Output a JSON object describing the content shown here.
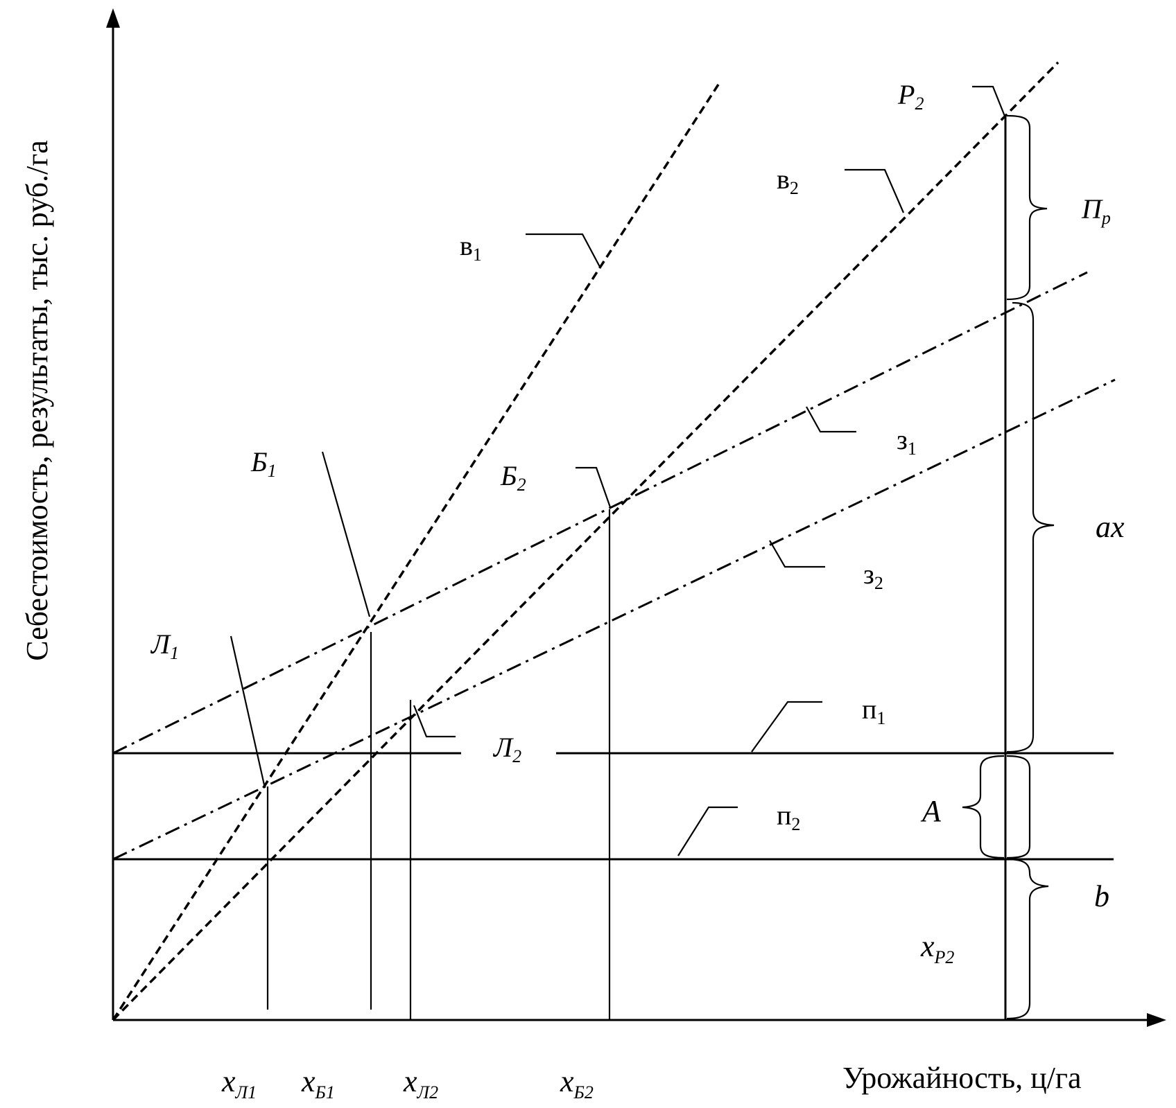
{
  "axes": {
    "y_title": "Себестоимость, результаты, тыс. руб./га",
    "x_title": "Урожайность, ц/га"
  },
  "lines": {
    "v1": {
      "base": "в",
      "sub": "1"
    },
    "v2": {
      "base": "в",
      "sub": "2"
    },
    "z1": {
      "base": "з",
      "sub": "1"
    },
    "z2": {
      "base": "з",
      "sub": "2"
    },
    "p1": {
      "base": "п",
      "sub": "1"
    },
    "p2": {
      "base": "п",
      "sub": "2"
    }
  },
  "points": {
    "B1": {
      "base": "Б",
      "sub": "1"
    },
    "B2": {
      "base": "Б",
      "sub": "2"
    },
    "L1": {
      "base": "Л",
      "sub": "1"
    },
    "L2": {
      "base": "Л",
      "sub": "2"
    },
    "P2": {
      "base": "Р",
      "sub": "2"
    }
  },
  "braces": {
    "Pr": {
      "base": "П",
      "sub": "р"
    },
    "ax": "ax",
    "A": "A",
    "b": "b"
  },
  "x_marks": {
    "xL1": {
      "base": "x",
      "sub": "Л1"
    },
    "xB1": {
      "base": "x",
      "sub": "Б1"
    },
    "xL2": {
      "base": "x",
      "sub": "Л2"
    },
    "xB2": {
      "base": "x",
      "sub": "Б2"
    },
    "xP2": {
      "base": "x",
      "sub": "Р2"
    }
  }
}
